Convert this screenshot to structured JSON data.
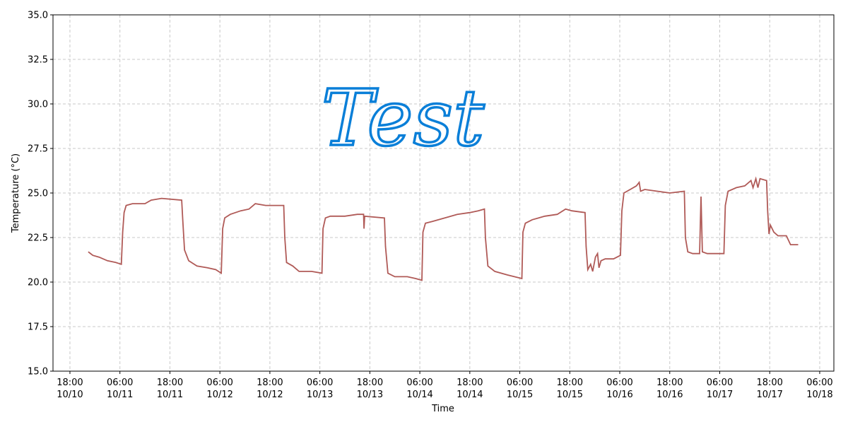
{
  "chart_data": {
    "type": "line",
    "xlabel": "Time",
    "ylabel": "Temperature (°C)",
    "annotation": "Test",
    "annotation_color": "#0a7fd8",
    "grid": true,
    "xlim": [
      "10/10 13:56",
      "10/18 09:24"
    ],
    "xticks": [
      {
        "value": "10/10 18:00",
        "label": "18:00\n10/10"
      },
      {
        "value": "10/11 06:00",
        "label": "06:00\n10/11"
      },
      {
        "value": "10/11 18:00",
        "label": "18:00\n10/11"
      },
      {
        "value": "10/12 06:00",
        "label": "06:00\n10/12"
      },
      {
        "value": "10/12 18:00",
        "label": "18:00\n10/12"
      },
      {
        "value": "10/13 06:00",
        "label": "06:00\n10/13"
      },
      {
        "value": "10/13 18:00",
        "label": "18:00\n10/13"
      },
      {
        "value": "10/14 06:00",
        "label": "06:00\n10/14"
      },
      {
        "value": "10/14 18:00",
        "label": "18:00\n10/14"
      },
      {
        "value": "10/15 06:00",
        "label": "06:00\n10/15"
      },
      {
        "value": "10/15 18:00",
        "label": "18:00\n10/15"
      },
      {
        "value": "10/16 06:00",
        "label": "06:00\n10/16"
      },
      {
        "value": "10/16 18:00",
        "label": "18:00\n10/16"
      },
      {
        "value": "10/17 06:00",
        "label": "06:00\n10/17"
      },
      {
        "value": "10/17 18:00",
        "label": "18:00\n10/17"
      },
      {
        "value": "10/18 06:00",
        "label": "06:00\n10/18"
      }
    ],
    "ylim": [
      15,
      35
    ],
    "yticks": [
      {
        "value": 15,
        "label": "15.0"
      },
      17.5,
      {
        "value": 20,
        "label": "20.0"
      },
      22.5,
      {
        "value": 25,
        "label": "25.0"
      },
      27.5,
      {
        "value": 30,
        "label": "30.0"
      },
      32.5,
      {
        "value": 35,
        "label": "35.0"
      }
    ],
    "x": [
      "10/10 22:24",
      "10/10 23:30",
      "10/11 01:00",
      "10/11 03:00",
      "10/11 05:00",
      "10/11 06:20",
      "10/11 06:40",
      "10/11 07:00",
      "10/11 07:30",
      "10/11 09:00",
      "10/11 12:00",
      "10/11 13:30",
      "10/11 16:00",
      "10/11 20:50",
      "10/11 21:05",
      "10/11 21:30",
      "10/11 22:30",
      "10/12 00:30",
      "10/12 03:00",
      "10/12 05:00",
      "10/12 06:20",
      "10/12 06:40",
      "10/12 07:10",
      "10/12 08:30",
      "10/12 11:00",
      "10/12 13:00",
      "10/12 14:30",
      "10/12 17:00",
      "10/12 21:20",
      "10/12 21:35",
      "10/12 22:00",
      "10/12 23:30",
      "10/13 01:00",
      "10/13 04:00",
      "10/13 06:30",
      "10/13 06:45",
      "10/13 07:20",
      "10/13 08:30",
      "10/13 12:00",
      "10/13 15:00",
      "10/13 16:30",
      "10/13 16:36",
      "10/13 16:45",
      "10/13 21:30",
      "10/13 21:45",
      "10/13 22:20",
      "10/14 00:00",
      "10/14 03:00",
      "10/14 05:00",
      "10/14 06:30",
      "10/14 06:45",
      "10/14 07:20",
      "10/14 09:00",
      "10/14 12:00",
      "10/14 15:00",
      "10/14 18:00",
      "10/14 20:00",
      "10/14 21:30",
      "10/14 21:45",
      "10/14 22:20",
      "10/15 00:00",
      "10/15 03:00",
      "10/15 06:30",
      "10/15 06:45",
      "10/15 07:20",
      "10/15 09:00",
      "10/15 12:00",
      "10/15 15:00",
      "10/15 17:00",
      "10/15 18:30",
      "10/15 21:40",
      "10/15 21:55",
      "10/15 22:20",
      "10/15 23:00",
      "10/15 23:30",
      "10/16 00:10",
      "10/16 00:40",
      "10/16 01:00",
      "10/16 01:30",
      "10/16 02:30",
      "10/16 04:30",
      "10/16 06:10",
      "10/16 06:30",
      "10/16 07:00",
      "10/16 08:30",
      "10/16 10:00",
      "10/16 10:40",
      "10/16 11:00",
      "10/16 12:00",
      "10/16 15:00",
      "10/16 18:00",
      "10/16 21:30",
      "10/16 21:45",
      "10/16 22:20",
      "10/16 23:30",
      "10/17 01:10",
      "10/17 01:30",
      "10/17 01:50",
      "10/17 03:00",
      "10/17 07:00",
      "10/17 07:20",
      "10/17 08:00",
      "10/17 10:00",
      "10/17 12:00",
      "10/17 13:30",
      "10/17 14:00",
      "10/17 14:40",
      "10/17 15:10",
      "10/17 15:40",
      "10/17 17:15",
      "10/17 17:30",
      "10/17 17:50",
      "10/17 18:10",
      "10/17 19:00",
      "10/17 20:00",
      "10/17 22:00",
      "10/17 23:00",
      "10/18 00:50"
    ],
    "series": [
      {
        "color": "#b05a57",
        "values": [
          21.7,
          21.5,
          21.4,
          21.2,
          21.1,
          21.0,
          22.8,
          23.9,
          24.3,
          24.4,
          24.4,
          24.6,
          24.7,
          24.6,
          23.5,
          21.8,
          21.2,
          20.9,
          20.8,
          20.7,
          20.5,
          23.0,
          23.6,
          23.8,
          24.0,
          24.1,
          24.4,
          24.3,
          24.3,
          22.5,
          21.1,
          20.9,
          20.6,
          20.6,
          20.5,
          23.0,
          23.6,
          23.7,
          23.7,
          23.8,
          23.8,
          23.0,
          23.7,
          23.6,
          22.0,
          20.5,
          20.3,
          20.3,
          20.2,
          20.1,
          22.8,
          23.3,
          23.4,
          23.6,
          23.8,
          23.9,
          24.0,
          24.1,
          22.5,
          20.9,
          20.6,
          20.4,
          20.2,
          22.8,
          23.3,
          23.5,
          23.7,
          23.8,
          24.1,
          24.0,
          23.9,
          22.0,
          20.7,
          21.0,
          20.6,
          21.4,
          21.6,
          20.8,
          21.2,
          21.3,
          21.3,
          21.5,
          24.0,
          25.0,
          25.2,
          25.4,
          25.6,
          25.1,
          25.2,
          25.1,
          25.0,
          25.1,
          22.5,
          21.7,
          21.6,
          21.6,
          24.8,
          21.7,
          21.6,
          21.6,
          24.3,
          25.1,
          25.3,
          25.4,
          25.7,
          25.3,
          25.8,
          25.3,
          25.8,
          25.7,
          24.0,
          22.7,
          23.2,
          22.8,
          22.6,
          22.6,
          22.1,
          22.1
        ]
      }
    ]
  }
}
